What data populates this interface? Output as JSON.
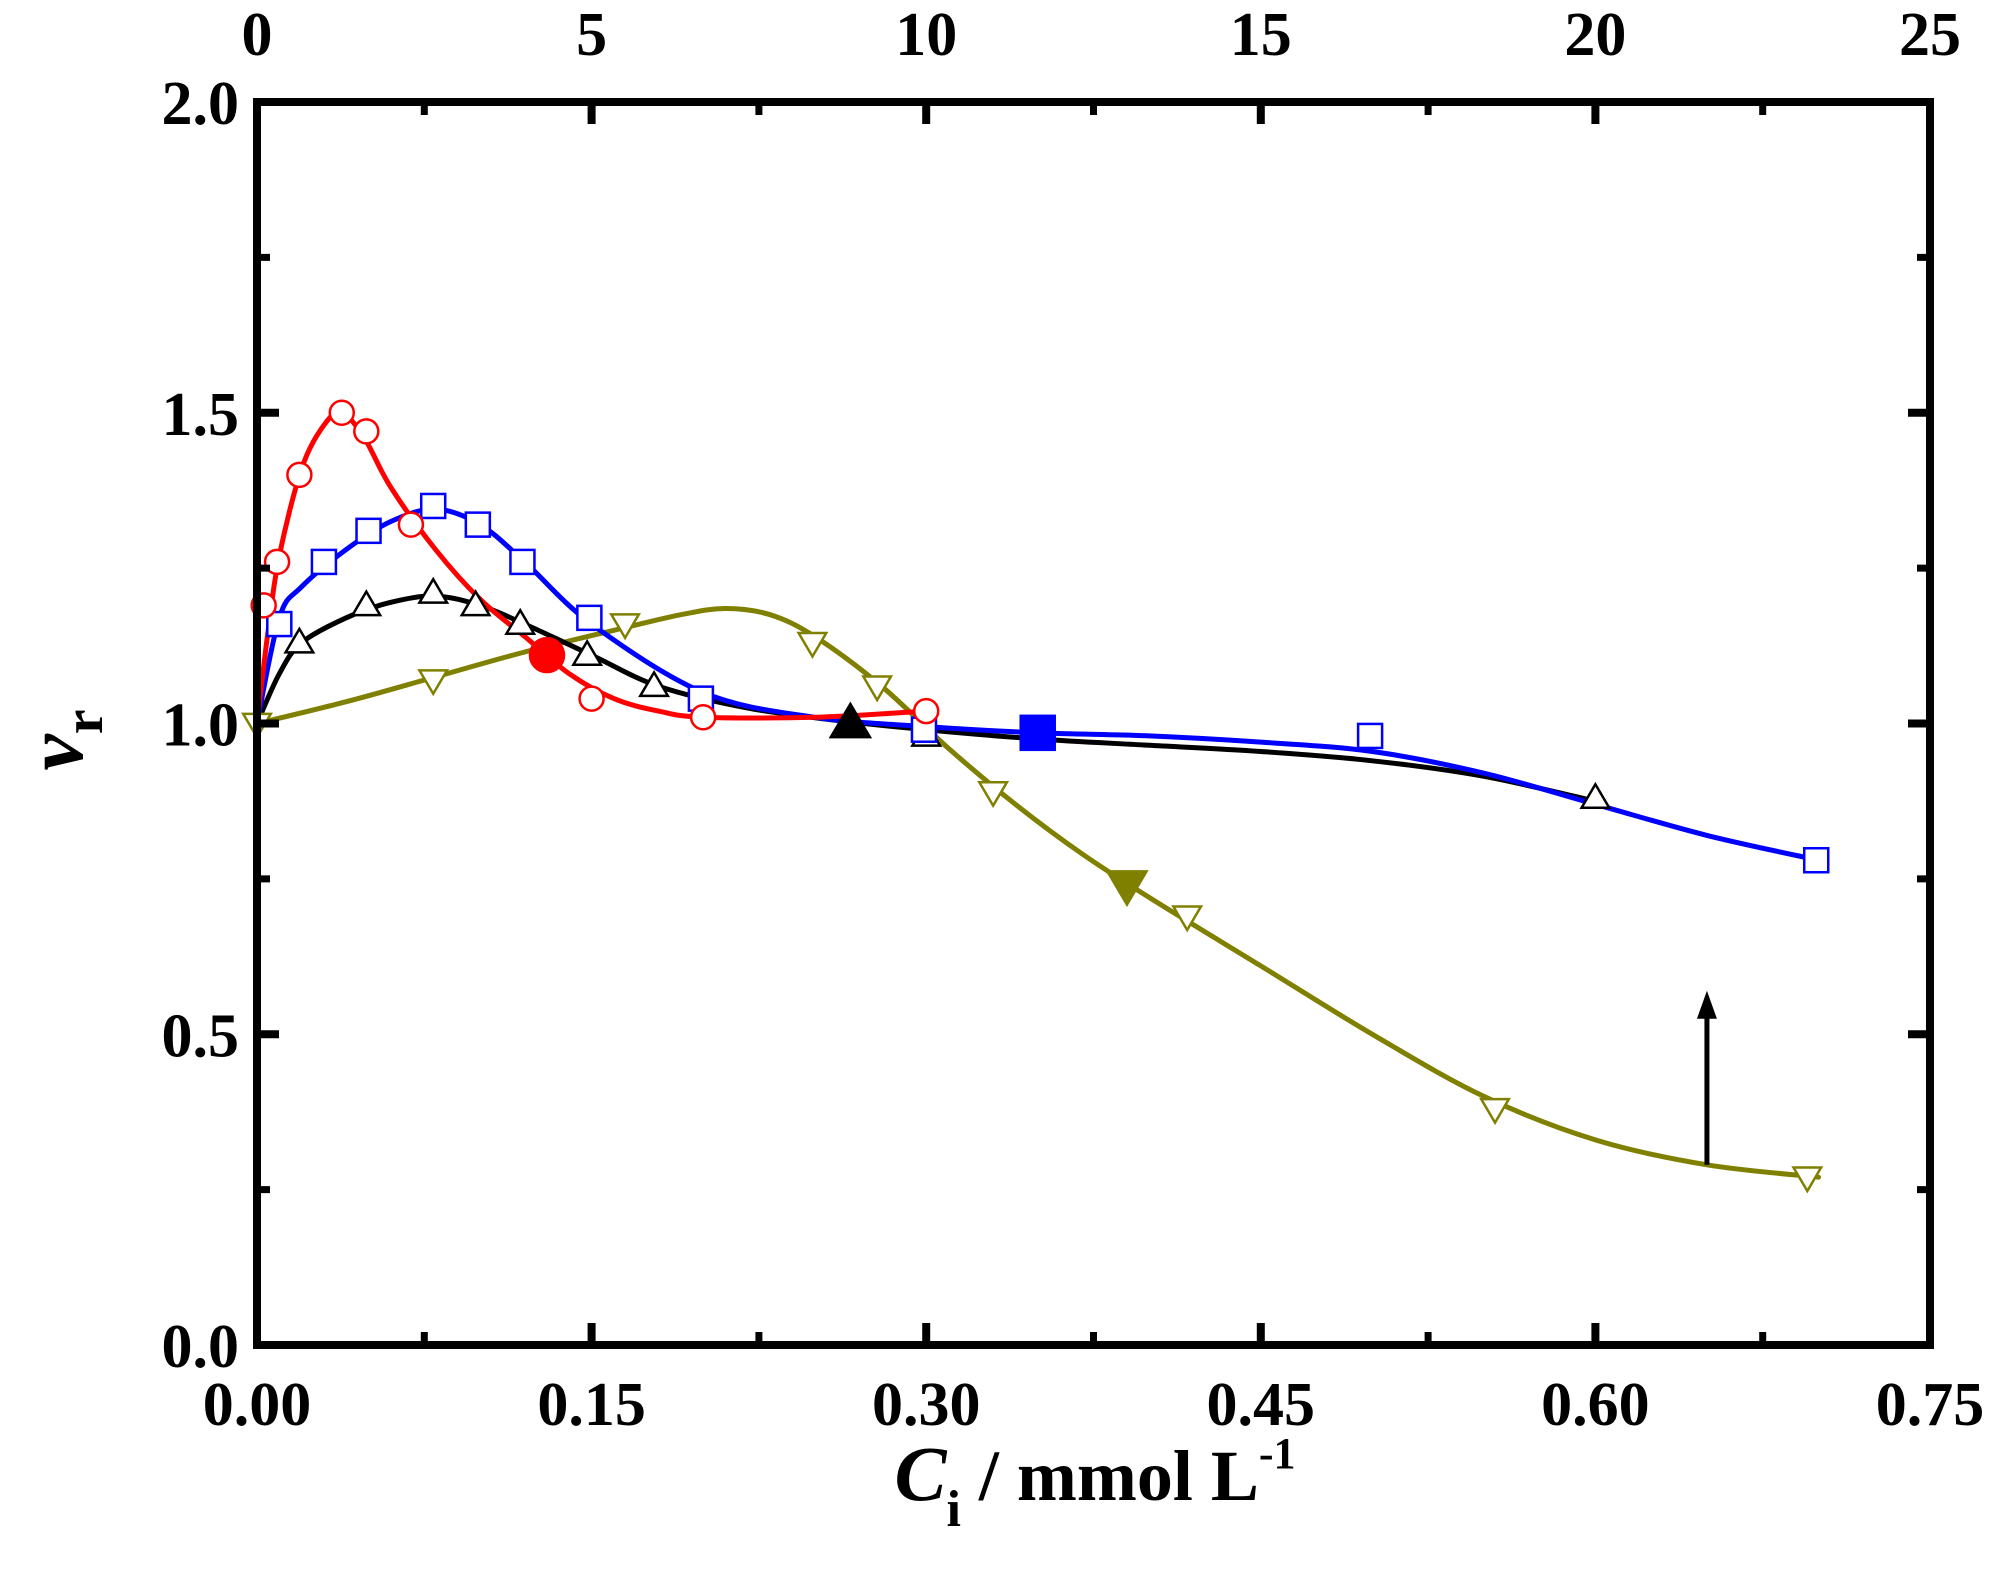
{
  "chart_data": {
    "type": "line",
    "xlabel": {
      "symbol": "C",
      "subscript": "i",
      "unit": " / mmol L",
      "superscript": "-1"
    },
    "ylabel": {
      "symbol": "v",
      "subscript": "r"
    },
    "xlim": [
      0,
      0.75
    ],
    "ylim": [
      0,
      2.0
    ],
    "top_xlim": [
      0,
      25
    ],
    "x_ticks": [
      "0.00",
      "0.15",
      "0.30",
      "0.45",
      "0.60",
      "0.75"
    ],
    "x_tick_values": [
      0,
      0.15,
      0.3,
      0.45,
      0.6,
      0.75
    ],
    "y_ticks": [
      "0.0",
      "0.5",
      "1.0",
      "1.5",
      "2.0"
    ],
    "y_tick_values": [
      0,
      0.5,
      1.0,
      1.5,
      2.0
    ],
    "top_ticks": [
      "0",
      "5",
      "10",
      "15",
      "20",
      "25"
    ],
    "top_tick_values": [
      0,
      5,
      10,
      15,
      20,
      25
    ],
    "grid": false,
    "series": [
      {
        "name": "red-circles",
        "color": "#ff0000",
        "marker": "circle",
        "line": [
          [
            0,
            1.0
          ],
          [
            0.005,
            1.15
          ],
          [
            0.01,
            1.27
          ],
          [
            0.02,
            1.41
          ],
          [
            0.03,
            1.48
          ],
          [
            0.038,
            1.5
          ],
          [
            0.048,
            1.46
          ],
          [
            0.06,
            1.38
          ],
          [
            0.08,
            1.28
          ],
          [
            0.1,
            1.2
          ],
          [
            0.12,
            1.14
          ],
          [
            0.14,
            1.08
          ],
          [
            0.16,
            1.04
          ],
          [
            0.18,
            1.02
          ],
          [
            0.2,
            1.01
          ],
          [
            0.25,
            1.01
          ],
          [
            0.3,
            1.02
          ]
        ],
        "points": [
          [
            0.003,
            1.19
          ],
          [
            0.009,
            1.26
          ],
          [
            0.019,
            1.4
          ],
          [
            0.038,
            1.5
          ],
          [
            0.049,
            1.47
          ],
          [
            0.069,
            1.32
          ],
          [
            0.15,
            1.04
          ],
          [
            0.2,
            1.01
          ],
          [
            0.3,
            1.02
          ]
        ],
        "highlight": [
          0.13,
          1.11
        ]
      },
      {
        "name": "blue-squares",
        "color": "#0000ff",
        "marker": "square",
        "line": [
          [
            0,
            1.0
          ],
          [
            0.01,
            1.17
          ],
          [
            0.02,
            1.22
          ],
          [
            0.04,
            1.28
          ],
          [
            0.06,
            1.325
          ],
          [
            0.08,
            1.345
          ],
          [
            0.1,
            1.32
          ],
          [
            0.12,
            1.26
          ],
          [
            0.15,
            1.16
          ],
          [
            0.2,
            1.05
          ],
          [
            0.25,
            1.01
          ],
          [
            0.3,
            0.995
          ],
          [
            0.35,
            0.985
          ],
          [
            0.4,
            0.98
          ],
          [
            0.45,
            0.97
          ],
          [
            0.5,
            0.955
          ],
          [
            0.55,
            0.92
          ],
          [
            0.6,
            0.87
          ],
          [
            0.65,
            0.82
          ],
          [
            0.7,
            0.78
          ]
        ],
        "points": [
          [
            0.01,
            1.16
          ],
          [
            0.03,
            1.26
          ],
          [
            0.05,
            1.31
          ],
          [
            0.079,
            1.35
          ],
          [
            0.099,
            1.32
          ],
          [
            0.119,
            1.26
          ],
          [
            0.149,
            1.17
          ],
          [
            0.199,
            1.04
          ],
          [
            0.299,
            0.99
          ],
          [
            0.499,
            0.98
          ],
          [
            0.699,
            0.78
          ]
        ],
        "highlight": [
          0.35,
          0.985
        ]
      },
      {
        "name": "black-triangles",
        "color": "#000000",
        "marker": "triangle",
        "line": [
          [
            0,
            1.0
          ],
          [
            0.01,
            1.08
          ],
          [
            0.02,
            1.13
          ],
          [
            0.04,
            1.17
          ],
          [
            0.06,
            1.195
          ],
          [
            0.08,
            1.205
          ],
          [
            0.1,
            1.19
          ],
          [
            0.12,
            1.16
          ],
          [
            0.15,
            1.11
          ],
          [
            0.18,
            1.06
          ],
          [
            0.22,
            1.025
          ],
          [
            0.26,
            1.005
          ],
          [
            0.3,
            0.99
          ],
          [
            0.35,
            0.975
          ],
          [
            0.4,
            0.965
          ],
          [
            0.45,
            0.955
          ],
          [
            0.5,
            0.94
          ],
          [
            0.55,
            0.915
          ],
          [
            0.6,
            0.875
          ]
        ],
        "points": [
          [
            0.019,
            1.13
          ],
          [
            0.049,
            1.19
          ],
          [
            0.079,
            1.21
          ],
          [
            0.098,
            1.19
          ],
          [
            0.118,
            1.16
          ],
          [
            0.148,
            1.11
          ],
          [
            0.178,
            1.06
          ],
          [
            0.3,
            0.98
          ],
          [
            0.6,
            0.88
          ]
        ],
        "highlight": [
          0.266,
          1.0
        ]
      },
      {
        "name": "olive-down-triangles",
        "color": "#808000",
        "marker": "triangle-down",
        "line": [
          [
            0,
            1.0
          ],
          [
            0.04,
            1.035
          ],
          [
            0.08,
            1.075
          ],
          [
            0.12,
            1.115
          ],
          [
            0.16,
            1.15
          ],
          [
            0.19,
            1.175
          ],
          [
            0.21,
            1.185
          ],
          [
            0.23,
            1.175
          ],
          [
            0.25,
            1.14
          ],
          [
            0.28,
            1.06
          ],
          [
            0.31,
            0.96
          ],
          [
            0.34,
            0.87
          ],
          [
            0.37,
            0.79
          ],
          [
            0.4,
            0.72
          ],
          [
            0.45,
            0.61
          ],
          [
            0.5,
            0.5
          ],
          [
            0.55,
            0.4
          ],
          [
            0.6,
            0.33
          ],
          [
            0.65,
            0.29
          ],
          [
            0.7,
            0.27
          ]
        ],
        "points": [
          [
            0,
            1.0
          ],
          [
            0.079,
            1.07
          ],
          [
            0.165,
            1.16
          ],
          [
            0.249,
            1.13
          ],
          [
            0.278,
            1.06
          ],
          [
            0.33,
            0.89
          ],
          [
            0.417,
            0.69
          ],
          [
            0.555,
            0.38
          ],
          [
            0.695,
            0.27
          ]
        ],
        "highlight": [
          0.39,
          0.74
        ]
      }
    ],
    "annotation": {
      "type": "arrow",
      "direction": "up",
      "x": 0.65,
      "y_from": 0.29,
      "y_to": 0.57
    }
  }
}
